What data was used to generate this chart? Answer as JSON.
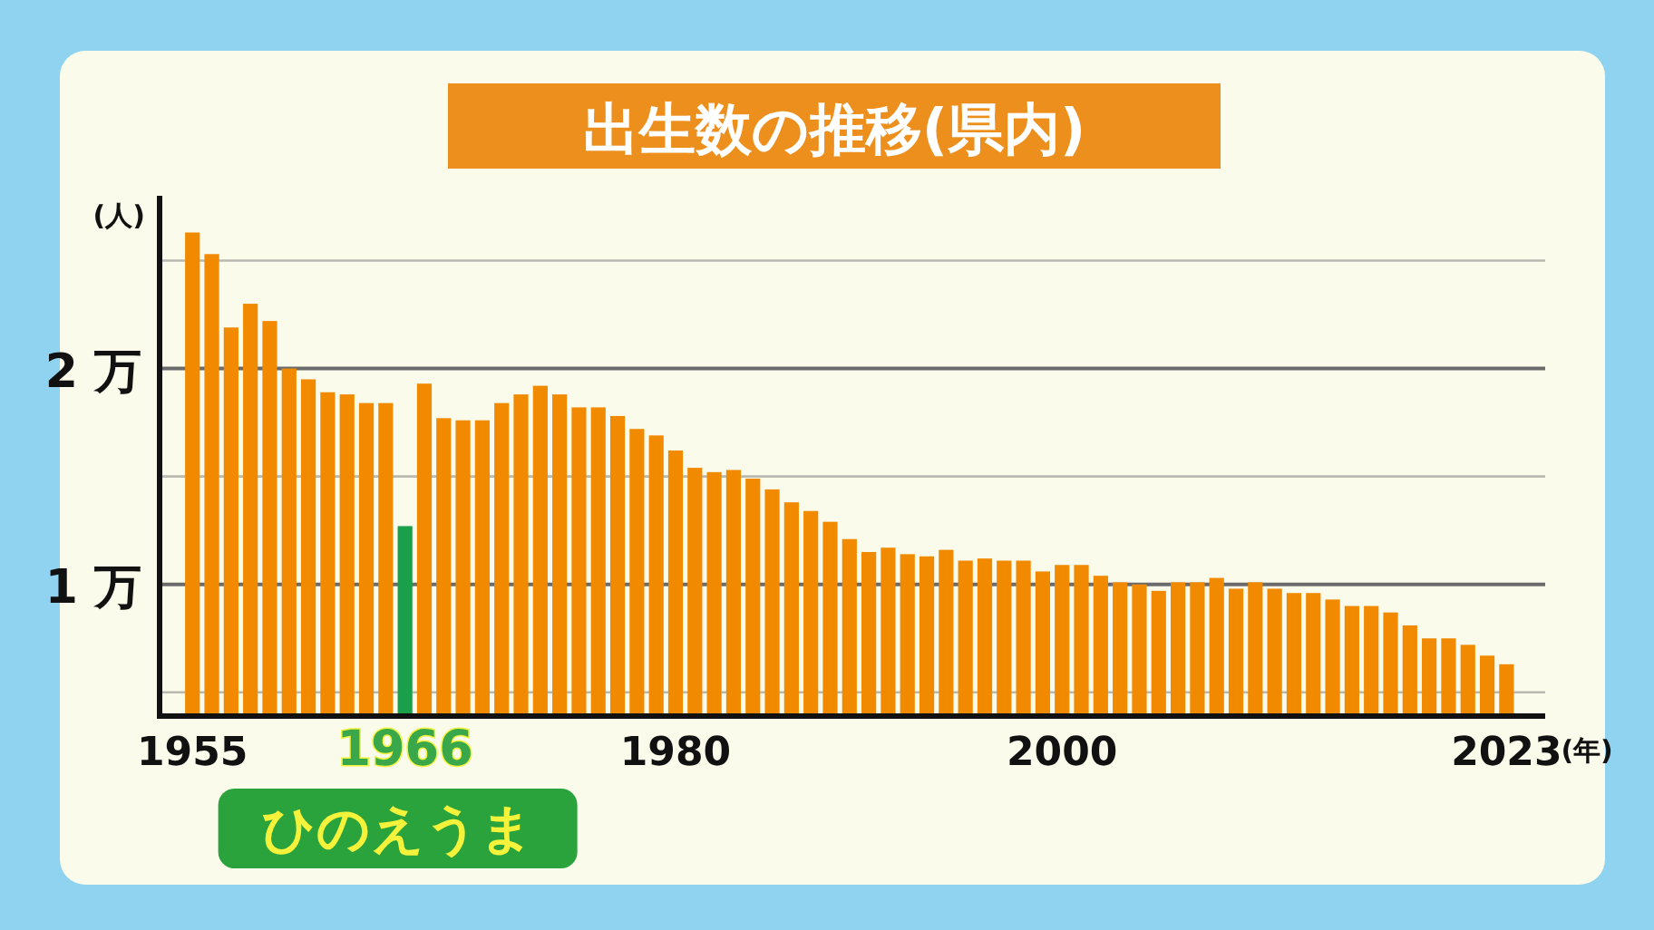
{
  "chart_data": {
    "type": "bar",
    "title": "出生数の推移(県内)",
    "ylabel": "(人)",
    "xlabel": "(年)",
    "x": [
      1955,
      1956,
      1957,
      1958,
      1959,
      1960,
      1961,
      1962,
      1963,
      1964,
      1965,
      1966,
      1967,
      1968,
      1969,
      1970,
      1971,
      1972,
      1973,
      1974,
      1975,
      1976,
      1977,
      1978,
      1979,
      1980,
      1981,
      1982,
      1983,
      1984,
      1985,
      1986,
      1987,
      1988,
      1989,
      1990,
      1991,
      1992,
      1993,
      1994,
      1995,
      1996,
      1997,
      1998,
      1999,
      2000,
      2001,
      2002,
      2003,
      2004,
      2005,
      2006,
      2007,
      2008,
      2009,
      2010,
      2011,
      2012,
      2013,
      2014,
      2015,
      2016,
      2017,
      2018,
      2019,
      2020,
      2021,
      2022,
      2023
    ],
    "values": [
      2.63,
      2.53,
      2.19,
      2.3,
      2.22,
      2.0,
      1.95,
      1.89,
      1.88,
      1.84,
      1.84,
      1.27,
      1.93,
      1.77,
      1.76,
      1.76,
      1.84,
      1.88,
      1.92,
      1.88,
      1.82,
      1.82,
      1.78,
      1.72,
      1.69,
      1.62,
      1.54,
      1.52,
      1.53,
      1.49,
      1.44,
      1.38,
      1.34,
      1.29,
      1.21,
      1.15,
      1.17,
      1.14,
      1.13,
      1.16,
      1.11,
      1.12,
      1.11,
      1.11,
      1.06,
      1.09,
      1.09,
      1.04,
      1.01,
      1.0,
      0.97,
      1.01,
      1.01,
      1.03,
      0.98,
      1.01,
      0.98,
      0.96,
      0.96,
      0.93,
      0.9,
      0.9,
      0.87,
      0.81,
      0.75,
      0.75,
      0.72,
      0.67,
      0.63
    ],
    "colors": [
      "#f28a00",
      "#f28a00",
      "#f28a00",
      "#f28a00",
      "#f28a00",
      "#f28a00",
      "#f28a00",
      "#f28a00",
      "#f28a00",
      "#f28a00",
      "#f28a00",
      "#1a9f4a",
      "#f28a00",
      "#f28a00",
      "#f28a00",
      "#f28a00",
      "#f28a00",
      "#f28a00",
      "#f28a00",
      "#f28a00",
      "#f28a00",
      "#f28a00",
      "#f28a00",
      "#f28a00",
      "#f28a00",
      "#f28a00",
      "#f28a00",
      "#f28a00",
      "#f28a00",
      "#f28a00",
      "#f28a00",
      "#f28a00",
      "#f28a00",
      "#f28a00",
      "#f28a00",
      "#f28a00",
      "#f28a00",
      "#f28a00",
      "#f28a00",
      "#f28a00",
      "#f28a00",
      "#f28a00",
      "#f28a00",
      "#f28a00",
      "#f28a00",
      "#f28a00",
      "#f28a00",
      "#f28a00",
      "#f28a00",
      "#f28a00",
      "#f28a00",
      "#f28a00",
      "#f28a00",
      "#f28a00",
      "#f28a00",
      "#f28a00",
      "#f28a00",
      "#f28a00",
      "#f28a00",
      "#f28a00",
      "#f28a00",
      "#f28a00",
      "#f28a00",
      "#f28a00",
      "#f28a00",
      "#f28a00",
      "#f28a00",
      "#f28a00",
      "#f28a00"
    ],
    "xlim": [
      1953.3,
      2025
    ],
    "xticks": [
      1955,
      1966,
      1980,
      2000,
      2023
    ],
    "ylim": [
      0.39,
      2.8
    ],
    "yticks": [
      {
        "value": 0.5,
        "label": null
      },
      {
        "value": 1,
        "label": "1 万"
      },
      {
        "value": 1.5,
        "label": null
      },
      {
        "value": 2,
        "label": "2 万"
      },
      {
        "value": 2.5,
        "label": null
      }
    ],
    "grid": "y",
    "annotations": [
      "ひのえうま"
    ]
  }
}
